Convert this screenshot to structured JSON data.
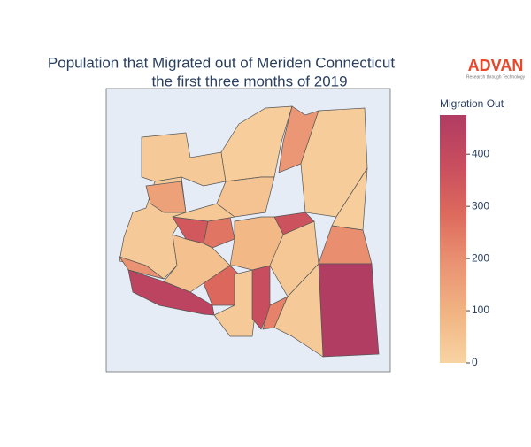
{
  "chart_data": {
    "type": "choropleth",
    "title": "Population that Migrated out of Meriden Connecticut",
    "subtitle": "the first three months of 2019",
    "colorbar_title": "Migration Out",
    "values": [
      30,
      20,
      180,
      25,
      20,
      200,
      470,
      30,
      430,
      190,
      340,
      260,
      60,
      290,
      30,
      380,
      230,
      30,
      40,
      360,
      80,
      50,
      150,
      35
    ],
    "zlim": [
      0,
      475
    ],
    "zticks": [
      0,
      100,
      200,
      300,
      400
    ],
    "colorscale": [
      "#f7d4a2",
      "#f1b482",
      "#ea9372",
      "#dd6a5d",
      "#c84d5e",
      "#b13c63"
    ],
    "logo": "ADVAN",
    "logo_tagline": "Research through Technology"
  }
}
